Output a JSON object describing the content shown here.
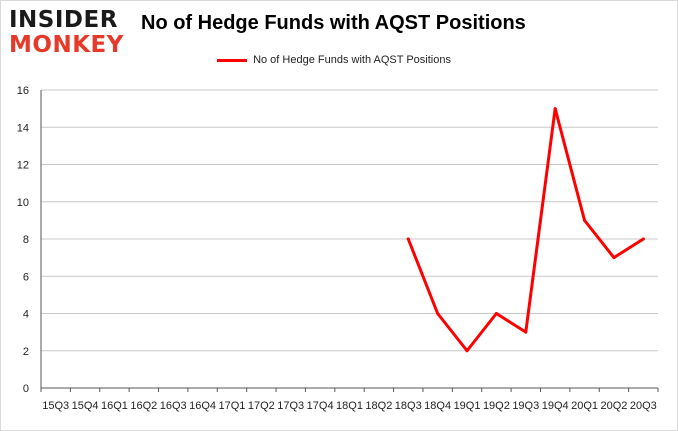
{
  "logo": {
    "line1": "INSIDER",
    "line2": "MONKEY"
  },
  "colors": {
    "series": "#ff0000",
    "grid": "#c8c8c8",
    "axis": "#555555",
    "logo_red": "#e53a2a"
  },
  "chart_data": {
    "type": "line",
    "title": "No of Hedge Funds with AQST Positions",
    "xlabel": "",
    "ylabel": "",
    "ylim": [
      0,
      16
    ],
    "yticks": [
      0,
      2,
      4,
      6,
      8,
      10,
      12,
      14,
      16
    ],
    "grid": true,
    "legend_position": "top-center",
    "categories": [
      "15Q3",
      "15Q4",
      "16Q1",
      "16Q2",
      "16Q3",
      "16Q4",
      "17Q1",
      "17Q2",
      "17Q3",
      "17Q4",
      "18Q1",
      "18Q2",
      "18Q3",
      "18Q4",
      "19Q1",
      "19Q2",
      "19Q3",
      "19Q4",
      "20Q1",
      "20Q2",
      "20Q3"
    ],
    "series": [
      {
        "name": "No of Hedge Funds with AQST Positions",
        "values": [
          null,
          null,
          null,
          null,
          null,
          null,
          null,
          null,
          null,
          null,
          null,
          null,
          8,
          4,
          2,
          4,
          3,
          15,
          9,
          7,
          8
        ]
      }
    ]
  }
}
